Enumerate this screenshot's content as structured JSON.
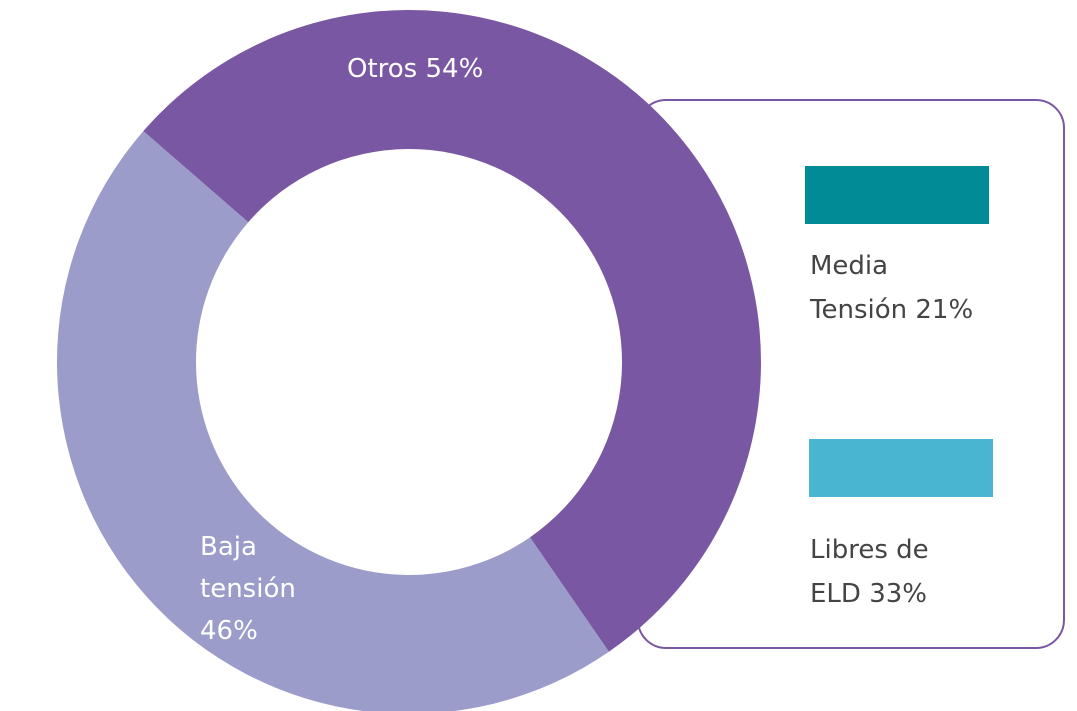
{
  "chart_data": {
    "type": "donut",
    "categories": [
      "Otros",
      "Baja tensión"
    ],
    "values": [
      54,
      46
    ],
    "value_labels": [
      "54%",
      "46%"
    ],
    "colors": [
      "#7a57a3",
      "#9b9cc9"
    ],
    "breakdown": {
      "categories": [
        "Media Tensión",
        "Libres de ELD"
      ],
      "values": [
        21,
        33
      ],
      "value_labels": [
        "21%",
        "33%"
      ],
      "colors": [
        "#008b96",
        "#4ab5d1"
      ]
    }
  }
}
